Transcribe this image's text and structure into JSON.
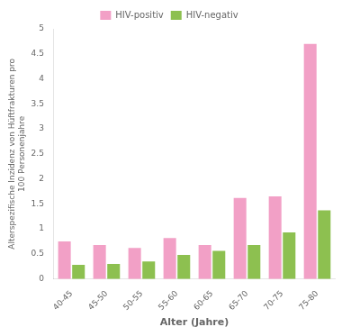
{
  "chart_data": {
    "type": "bar",
    "categories": [
      "40-45",
      "45-50",
      "50-55",
      "55-60",
      "60-65",
      "65-70",
      "70-75",
      "75-80"
    ],
    "series": [
      {
        "name": "HIV-positiv",
        "color": "#f2a0c6",
        "values": [
          0.75,
          0.68,
          0.62,
          0.82,
          0.68,
          1.62,
          1.65,
          4.7
        ]
      },
      {
        "name": "HIV-negativ",
        "color": "#8dc050",
        "values": [
          0.28,
          0.3,
          0.35,
          0.48,
          0.56,
          0.68,
          0.93,
          1.37
        ]
      }
    ],
    "xlabel": "Alter (Jahre)",
    "ylabel": [
      "Alterspezifische Inzidenz von Hüftfrakturen pro",
      "100 Personenjahre"
    ],
    "ylim": [
      0,
      5.0
    ],
    "yticks": [
      0,
      0.5,
      1.0,
      1.5,
      2.0,
      2.5,
      3.0,
      3.5,
      4.0,
      4.5,
      5.0
    ],
    "legend": "top",
    "grid": false
  }
}
